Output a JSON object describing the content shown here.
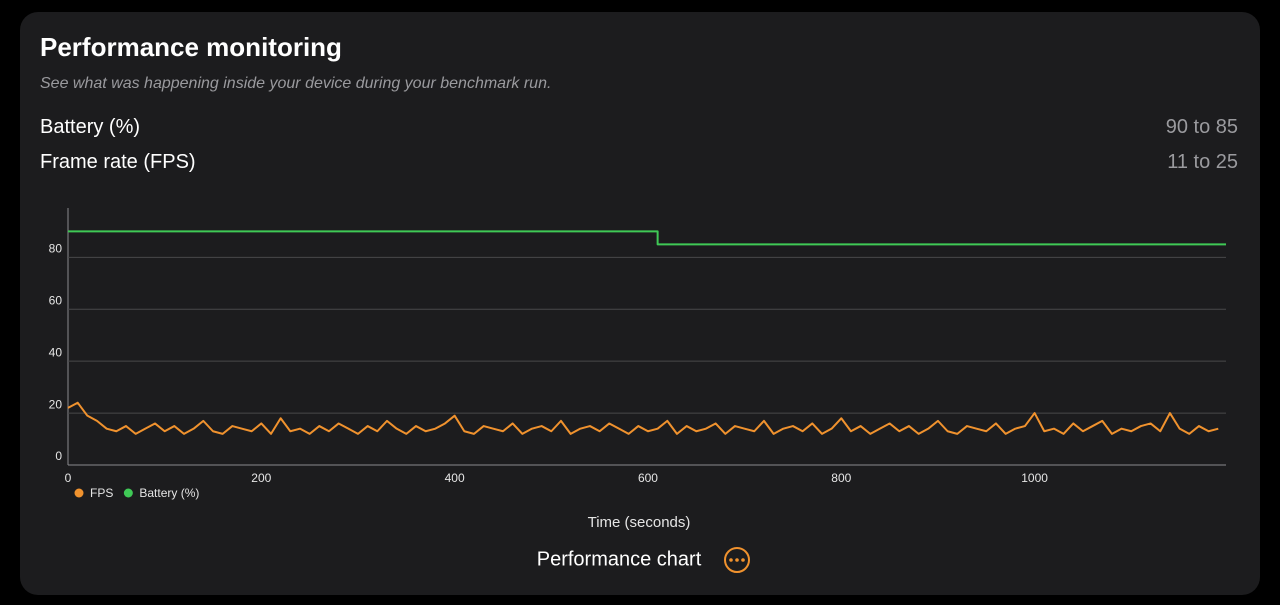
{
  "header": {
    "title": "Performance monitoring",
    "subtitle": "See what was happening inside your device during your benchmark run."
  },
  "stats": [
    {
      "label": "Battery (%)",
      "value": "90 to 85"
    },
    {
      "label": "Frame rate (FPS)",
      "value": "11 to 25"
    }
  ],
  "chart_data": {
    "type": "line",
    "xlabel": "Time (seconds)",
    "xlim": [
      0,
      1198
    ],
    "ylim": [
      0,
      99
    ],
    "xticks": [
      0,
      200,
      400,
      600,
      800,
      1000
    ],
    "yticks": [
      0,
      20,
      40,
      60,
      80
    ],
    "grid": true,
    "legend": "bottom-left",
    "series": [
      {
        "name": "FPS",
        "color": "#f0922e",
        "x": [
          0,
          10,
          20,
          30,
          40,
          50,
          60,
          70,
          80,
          90,
          100,
          110,
          120,
          130,
          140,
          150,
          160,
          170,
          180,
          190,
          200,
          210,
          220,
          230,
          240,
          250,
          260,
          270,
          280,
          290,
          300,
          310,
          320,
          330,
          340,
          350,
          360,
          370,
          380,
          390,
          400,
          410,
          420,
          430,
          440,
          450,
          460,
          470,
          480,
          490,
          500,
          510,
          520,
          530,
          540,
          550,
          560,
          570,
          580,
          590,
          600,
          610,
          620,
          630,
          640,
          650,
          660,
          670,
          680,
          690,
          700,
          710,
          720,
          730,
          740,
          750,
          760,
          770,
          780,
          790,
          800,
          810,
          820,
          830,
          840,
          850,
          860,
          870,
          880,
          890,
          900,
          910,
          920,
          930,
          940,
          950,
          960,
          970,
          980,
          990,
          1000,
          1010,
          1020,
          1030,
          1040,
          1050,
          1060,
          1070,
          1080,
          1090,
          1100,
          1110,
          1120,
          1130,
          1140,
          1150,
          1160,
          1170,
          1180,
          1190
        ],
        "values": [
          22,
          24,
          19,
          17,
          14,
          13,
          15,
          12,
          14,
          16,
          13,
          15,
          12,
          14,
          17,
          13,
          12,
          15,
          14,
          13,
          16,
          12,
          18,
          13,
          14,
          12,
          15,
          13,
          16,
          14,
          12,
          15,
          13,
          17,
          14,
          12,
          15,
          13,
          14,
          16,
          19,
          13,
          12,
          15,
          14,
          13,
          16,
          12,
          14,
          15,
          13,
          17,
          12,
          14,
          15,
          13,
          16,
          14,
          12,
          15,
          13,
          14,
          17,
          12,
          15,
          13,
          14,
          16,
          12,
          15,
          14,
          13,
          17,
          12,
          14,
          15,
          13,
          16,
          12,
          14,
          18,
          13,
          15,
          12,
          14,
          16,
          13,
          15,
          12,
          14,
          17,
          13,
          12,
          15,
          14,
          13,
          16,
          12,
          14,
          15,
          20,
          13,
          14,
          12,
          16,
          13,
          15,
          17,
          12,
          14,
          13,
          15,
          16,
          13,
          20,
          14,
          12,
          15,
          13,
          14
        ]
      },
      {
        "name": "Battery (%)",
        "color": "#3fc956",
        "x": [
          0,
          610,
          610,
          1198
        ],
        "values": [
          90,
          90,
          85,
          85
        ]
      }
    ]
  },
  "footer": {
    "label": "Performance chart"
  }
}
